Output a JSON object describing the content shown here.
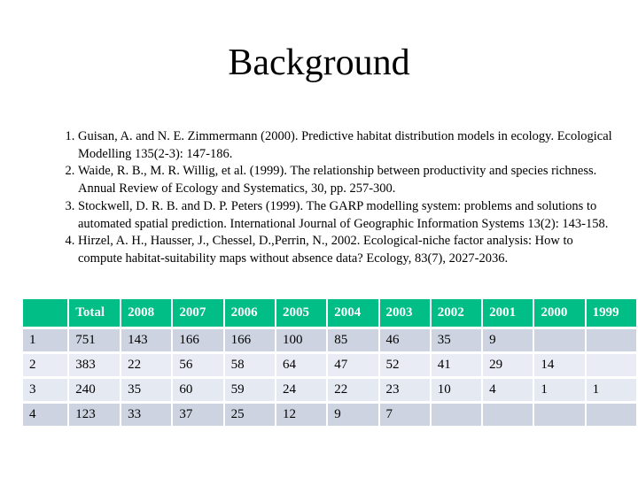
{
  "slide": {
    "title": "Background"
  },
  "references": [
    "Guisan, A. and N. E. Zimmermann (2000). Predictive habitat distribution models in ecology. Ecological Modelling 135(2-3): 147-186.",
    "Waide, R. B., M. R. Willig, et al. (1999). The relationship between productivity and species richness. Annual Review of Ecology and Systematics, 30, pp. 257-300.",
    "Stockwell, D. R. B. and D. P. Peters (1999). The GARP modelling system: problems and solutions to automated spatial prediction. International Journal of Geographic Information Systems 13(2): 143-158.",
    "Hirzel, A. H., Hausser, J., Chessel, D.,Perrin, N., 2002. Ecological-niche factor analysis: How to compute habitat-suitability maps without absence data? Ecology, 83(7), 2027-2036."
  ],
  "table": {
    "columns": [
      "",
      "Total",
      "2008",
      "2007",
      "2006",
      "2005",
      "2004",
      "2003",
      "2002",
      "2001",
      "2000",
      "1999"
    ],
    "rows": [
      {
        "label": "1",
        "values": [
          "751",
          "143",
          "166",
          "166",
          "100",
          "85",
          "46",
          "35",
          "9",
          "",
          ""
        ]
      },
      {
        "label": "2",
        "values": [
          "383",
          "22",
          "56",
          "58",
          "64",
          "47",
          "52",
          "41",
          "29",
          "14",
          ""
        ]
      },
      {
        "label": "3",
        "values": [
          "240",
          "35",
          "60",
          "59",
          "24",
          "22",
          "23",
          "10",
          "4",
          "1",
          "1"
        ]
      },
      {
        "label": "4",
        "values": [
          "123",
          "33",
          "37",
          "25",
          "12",
          "9",
          "7",
          "",
          "",
          "",
          ""
        ]
      }
    ]
  },
  "colors": {
    "header_green": "#00be86",
    "header_text": "#ffffff",
    "row_dark": "#cdd3e0",
    "row_light": "#e9ecf4",
    "row_light_alt": "#e4e9f2",
    "text": "#000000",
    "background": "#ffffff"
  }
}
